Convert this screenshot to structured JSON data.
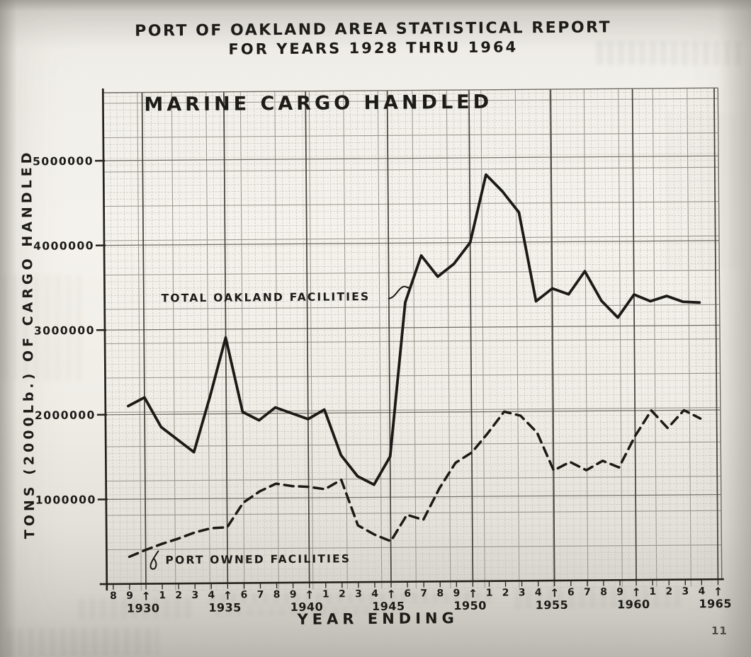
{
  "page": {
    "title_line1": "PORT OF OAKLAND AREA STATISTICAL REPORT",
    "title_line2": "FOR YEARS 1928 THRU 1964",
    "page_number": "11"
  },
  "chart_data": {
    "type": "line",
    "title": "MARINE CARGO HANDLED",
    "xlabel": "YEAR ENDING",
    "ylabel": "TONS (2000Lb.) OF CARGO HANDLED",
    "xlim": [
      1928,
      1965
    ],
    "ylim": [
      0,
      5400000
    ],
    "grid": true,
    "ink_color": "#1b1a16",
    "arrow_glyph": "↑",
    "y_ticks": [
      {
        "value": 1000000,
        "label": "1000000"
      },
      {
        "value": 2000000,
        "label": "2000000"
      },
      {
        "value": 3000000,
        "label": "3000000"
      },
      {
        "value": 4000000,
        "label": "4000000"
      },
      {
        "value": 5000000,
        "label": "5000000"
      }
    ],
    "x_ticks": [
      {
        "year": 1928,
        "label": "8"
      },
      {
        "year": 1929,
        "label": "9"
      },
      {
        "year": 1930,
        "label": "1930",
        "arrow": true
      },
      {
        "year": 1931,
        "label": "1"
      },
      {
        "year": 1932,
        "label": "2"
      },
      {
        "year": 1933,
        "label": "3"
      },
      {
        "year": 1934,
        "label": "4"
      },
      {
        "year": 1935,
        "label": "1935",
        "arrow": true
      },
      {
        "year": 1936,
        "label": "6"
      },
      {
        "year": 1937,
        "label": "7"
      },
      {
        "year": 1938,
        "label": "8"
      },
      {
        "year": 1939,
        "label": "9"
      },
      {
        "year": 1940,
        "label": "1940",
        "arrow": true
      },
      {
        "year": 1941,
        "label": "1"
      },
      {
        "year": 1942,
        "label": "2"
      },
      {
        "year": 1943,
        "label": "3"
      },
      {
        "year": 1944,
        "label": "4"
      },
      {
        "year": 1945,
        "label": "1945",
        "arrow": true
      },
      {
        "year": 1946,
        "label": "6"
      },
      {
        "year": 1947,
        "label": "7"
      },
      {
        "year": 1948,
        "label": "8"
      },
      {
        "year": 1949,
        "label": "9"
      },
      {
        "year": 1950,
        "label": "1950",
        "arrow": true
      },
      {
        "year": 1951,
        "label": "1"
      },
      {
        "year": 1952,
        "label": "2"
      },
      {
        "year": 1953,
        "label": "3"
      },
      {
        "year": 1954,
        "label": "4"
      },
      {
        "year": 1955,
        "label": "1955",
        "arrow": true
      },
      {
        "year": 1956,
        "label": "6"
      },
      {
        "year": 1957,
        "label": "7"
      },
      {
        "year": 1958,
        "label": "8"
      },
      {
        "year": 1959,
        "label": "9"
      },
      {
        "year": 1960,
        "label": "1960",
        "arrow": true
      },
      {
        "year": 1961,
        "label": "1"
      },
      {
        "year": 1962,
        "label": "2"
      },
      {
        "year": 1963,
        "label": "3"
      },
      {
        "year": 1964,
        "label": "4"
      },
      {
        "year": 1965,
        "label": "1965",
        "arrow": true
      }
    ],
    "years": [
      1929,
      1930,
      1931,
      1932,
      1933,
      1934,
      1935,
      1936,
      1937,
      1938,
      1939,
      1940,
      1941,
      1942,
      1943,
      1944,
      1945,
      1946,
      1947,
      1948,
      1949,
      1950,
      1951,
      1952,
      1953,
      1954,
      1955,
      1956,
      1957,
      1958,
      1959,
      1960,
      1961,
      1962,
      1963,
      1964
    ],
    "series": [
      {
        "name": "TOTAL OAKLAND FACILITIES",
        "style": "solid",
        "values": [
          2100000,
          2200000,
          1850000,
          1700000,
          1550000,
          2200000,
          2900000,
          2020000,
          1920000,
          2070000,
          2000000,
          1930000,
          2040000,
          1500000,
          1250000,
          1150000,
          1480000,
          3300000,
          3850000,
          3600000,
          3750000,
          4000000,
          4800000,
          4600000,
          4350000,
          3300000,
          3450000,
          3380000,
          3650000,
          3300000,
          3100000,
          3370000,
          3290000,
          3350000,
          3280000,
          3270000
        ]
      },
      {
        "name": "PORT OWNED FACILITIES",
        "style": "dashed",
        "values": [
          320000,
          400000,
          470000,
          530000,
          600000,
          650000,
          660000,
          950000,
          1080000,
          1170000,
          1140000,
          1130000,
          1100000,
          1210000,
          670000,
          560000,
          480000,
          790000,
          730000,
          1100000,
          1400000,
          1520000,
          1750000,
          2000000,
          1950000,
          1750000,
          1300000,
          1400000,
          1300000,
          1410000,
          1330000,
          1700000,
          2000000,
          1790000,
          2000000,
          1900000
        ]
      }
    ]
  }
}
